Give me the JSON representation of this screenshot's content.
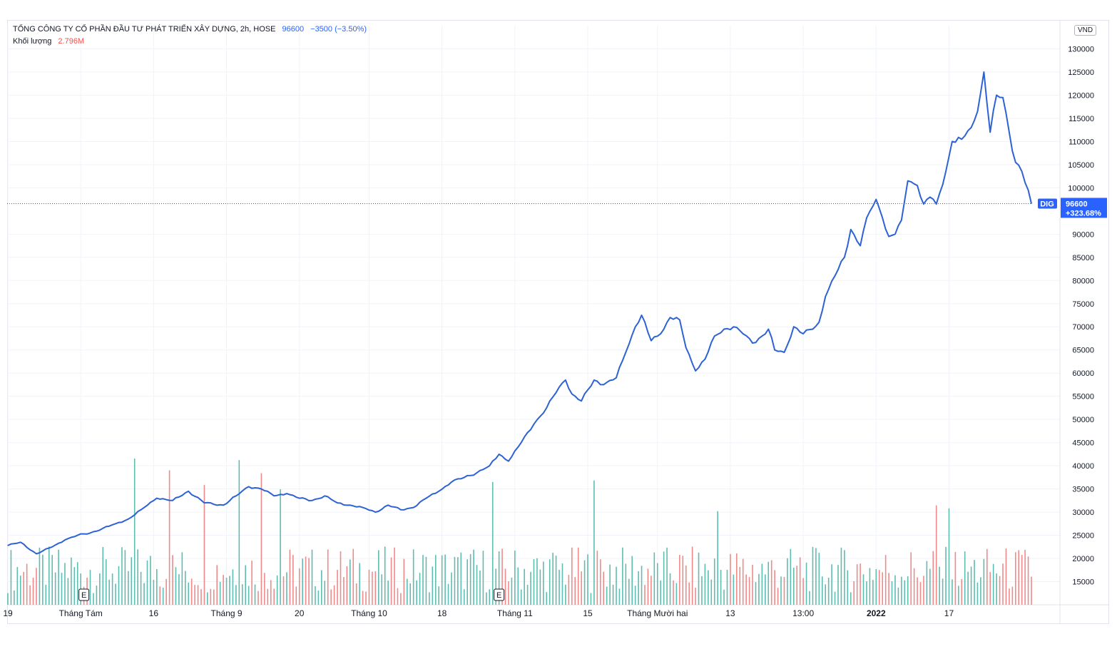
{
  "legend": {
    "title": "TỔNG CÔNG TY CỔ PHẦN ĐẦU TƯ PHÁT TRIỂN XÂY DỰNG, 2h, HOSE",
    "last": "96600",
    "change": "−3500 (−3.50%)",
    "volume_label": "Khối lượng",
    "volume_value": "2.796M"
  },
  "currency": "VND",
  "colors": {
    "line": "#2d62d4",
    "vol_up": "#5fbcb0",
    "vol_down": "#ef8a8a",
    "grid": "#f0f3fa",
    "axis_text": "#131722",
    "tag_bg": "#2962ff"
  },
  "chart_data": {
    "type": "line",
    "title": "TỔNG CÔNG TY CỔ PHẦN ĐẦU TƯ PHÁT TRIỂN XÂY DỰNG, 2h, HOSE",
    "symbol": "DIG",
    "interval": "2h",
    "exchange": "HOSE",
    "ylim": [
      10000,
      135000
    ],
    "yticks": [
      15000,
      20000,
      25000,
      30000,
      35000,
      40000,
      45000,
      50000,
      55000,
      60000,
      65000,
      70000,
      75000,
      80000,
      85000,
      90000,
      100000,
      105000,
      110000,
      115000,
      120000,
      125000,
      130000
    ],
    "x_labels": [
      "19",
      "Tháng Tám",
      "16",
      "Tháng 9",
      "20",
      "Tháng 10",
      "18",
      "Tháng 11",
      "15",
      "Tháng Mười hai",
      "13",
      "13:00",
      "2022",
      "17"
    ],
    "x_label_pos": [
      0,
      23,
      46,
      69,
      92,
      114,
      137,
      160,
      183,
      205,
      228,
      251,
      274,
      297
    ],
    "x_count": 300,
    "price_keypoints": [
      [
        0,
        22800
      ],
      [
        4,
        23500
      ],
      [
        9,
        21000
      ],
      [
        14,
        22500
      ],
      [
        18,
        24000
      ],
      [
        22,
        25000
      ],
      [
        26,
        25500
      ],
      [
        30,
        26500
      ],
      [
        34,
        27500
      ],
      [
        38,
        28500
      ],
      [
        42,
        30500
      ],
      [
        47,
        33000
      ],
      [
        52,
        32500
      ],
      [
        57,
        34500
      ],
      [
        62,
        32000
      ],
      [
        68,
        31500
      ],
      [
        72,
        33500
      ],
      [
        76,
        35500
      ],
      [
        80,
        35000
      ],
      [
        84,
        33500
      ],
      [
        88,
        34000
      ],
      [
        92,
        33000
      ],
      [
        96,
        32500
      ],
      [
        100,
        33500
      ],
      [
        104,
        32000
      ],
      [
        108,
        31500
      ],
      [
        112,
        31000
      ],
      [
        116,
        30000
      ],
      [
        120,
        31500
      ],
      [
        124,
        30500
      ],
      [
        128,
        31000
      ],
      [
        132,
        33000
      ],
      [
        136,
        34500
      ],
      [
        140,
        36500
      ],
      [
        144,
        37500
      ],
      [
        148,
        38500
      ],
      [
        152,
        40000
      ],
      [
        155,
        42500
      ],
      [
        158,
        41000
      ],
      [
        162,
        45000
      ],
      [
        166,
        49000
      ],
      [
        170,
        52500
      ],
      [
        174,
        57000
      ],
      [
        176,
        58500
      ],
      [
        178,
        55500
      ],
      [
        181,
        54000
      ],
      [
        185,
        58500
      ],
      [
        188,
        57500
      ],
      [
        192,
        59000
      ],
      [
        195,
        64500
      ],
      [
        198,
        70000
      ],
      [
        200,
        72500
      ],
      [
        203,
        67000
      ],
      [
        206,
        68500
      ],
      [
        209,
        72000
      ],
      [
        212,
        71500
      ],
      [
        214,
        65500
      ],
      [
        217,
        60500
      ],
      [
        220,
        63000
      ],
      [
        223,
        68000
      ],
      [
        226,
        69500
      ],
      [
        229,
        70000
      ],
      [
        232,
        68500
      ],
      [
        235,
        66500
      ],
      [
        238,
        68000
      ],
      [
        240,
        69500
      ],
      [
        242,
        65000
      ],
      [
        245,
        64500
      ],
      [
        248,
        70000
      ],
      [
        251,
        68500
      ],
      [
        254,
        69500
      ],
      [
        256,
        71000
      ],
      [
        258,
        76500
      ],
      [
        261,
        81000
      ],
      [
        264,
        85000
      ],
      [
        266,
        91000
      ],
      [
        269,
        87500
      ],
      [
        271,
        93500
      ],
      [
        274,
        97500
      ],
      [
        276,
        93500
      ],
      [
        278,
        89500
      ],
      [
        280,
        90000
      ],
      [
        282,
        93000
      ],
      [
        284,
        101500
      ],
      [
        287,
        100500
      ],
      [
        289,
        96500
      ],
      [
        291,
        98000
      ],
      [
        293,
        96500
      ],
      [
        296,
        103500
      ],
      [
        298,
        110000
      ],
      [
        301,
        110500
      ],
      [
        304,
        113000
      ],
      [
        306,
        116500
      ],
      [
        308,
        125000
      ],
      [
        310,
        112000
      ],
      [
        312,
        120000
      ],
      [
        314,
        119500
      ],
      [
        316,
        112000
      ],
      [
        318,
        105500
      ],
      [
        320,
        103500
      ],
      [
        323,
        96600
      ]
    ],
    "last_price": 96600,
    "last_change_pct": "+323.68%",
    "volume_unit": "relative",
    "earnings_markers": [
      "E",
      "E"
    ]
  }
}
